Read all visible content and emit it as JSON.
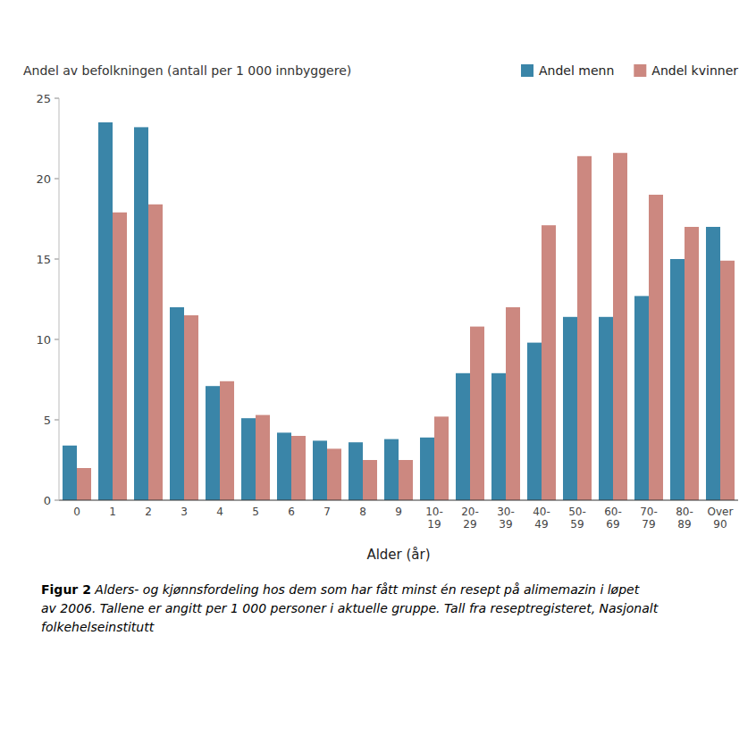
{
  "chart_data": {
    "type": "bar",
    "categories": [
      "0",
      "1",
      "2",
      "3",
      "4",
      "5",
      "6",
      "7",
      "8",
      "9",
      "10-\n19",
      "20-\n29",
      "30-\n39",
      "40-\n49",
      "50-\n59",
      "60-\n69",
      "70-\n79",
      "80-\n89",
      "Over\n90"
    ],
    "series": [
      {
        "name": "Andel menn",
        "color": "#3a85a8",
        "values": [
          3.4,
          23.5,
          23.2,
          12.0,
          7.1,
          5.1,
          4.2,
          3.7,
          3.6,
          3.8,
          3.9,
          7.9,
          7.9,
          9.8,
          11.4,
          11.4,
          12.7,
          15.0,
          17.0
        ]
      },
      {
        "name": "Andel kvinner",
        "color": "#cc8880",
        "values": [
          2.0,
          17.9,
          18.4,
          11.5,
          7.4,
          5.3,
          4.0,
          3.2,
          2.5,
          2.5,
          5.2,
          10.8,
          12.0,
          17.1,
          21.4,
          21.6,
          19.0,
          17.0,
          14.9
        ]
      }
    ],
    "ylabel": "Andel av befolkningen (antall per 1 000 innbyggere)",
    "xlabel": "Alder (år)",
    "ylim": [
      0,
      25
    ],
    "yticks": [
      0,
      5,
      10,
      15,
      20,
      25
    ],
    "grid": false,
    "legend": "upper right",
    "annotations": [
      "Figur 2",
      " Alders- og kjønnsfordeling hos dem som har fått minst én resept på alimemazin i løpet\nav 2006. Tallene er angitt per 1 000 personer i aktuelle gruppe. Tall fra reseptregisteret, Nasjonalt\nfolkehelseinstitutt"
    ]
  }
}
